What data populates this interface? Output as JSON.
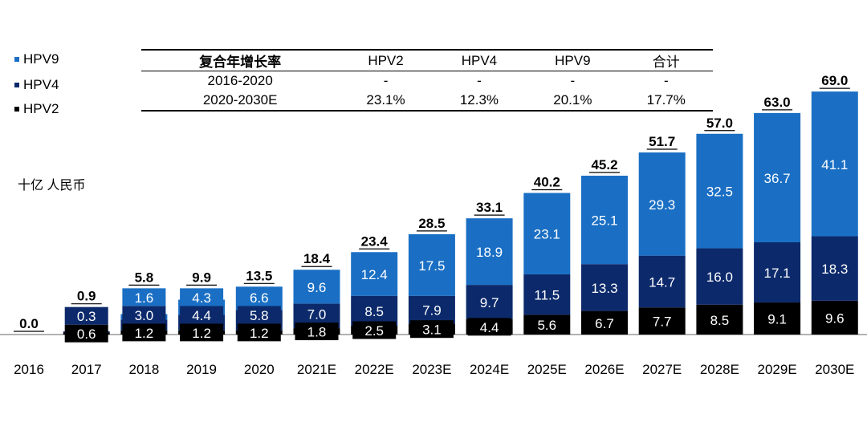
{
  "chart_data": {
    "type": "bar",
    "stacked": true,
    "ylabel": "十亿 人民币",
    "categories": [
      "2016",
      "2017",
      "2018",
      "2019",
      "2020",
      "2021E",
      "2022E",
      "2023E",
      "2024E",
      "2025E",
      "2026E",
      "2027E",
      "2028E",
      "2029E",
      "2030E"
    ],
    "series": [
      {
        "name": "HPV2",
        "color": "#000000",
        "values": [
          0,
          0.6,
          1.2,
          1.2,
          1.2,
          1.8,
          2.5,
          3.1,
          4.4,
          5.6,
          6.7,
          7.7,
          8.5,
          9.1,
          9.6
        ]
      },
      {
        "name": "HPV4",
        "color": "#0c2a6b",
        "values": [
          0,
          0.3,
          3.0,
          4.4,
          5.8,
          7.0,
          8.5,
          7.9,
          9.7,
          11.5,
          13.3,
          14.7,
          16.0,
          17.1,
          18.3
        ]
      },
      {
        "name": "HPV9",
        "color": "#1a6fc4",
        "values": [
          0,
          0,
          1.6,
          4.3,
          6.6,
          9.6,
          12.4,
          17.5,
          18.9,
          23.1,
          25.1,
          29.3,
          32.5,
          36.7,
          41.1
        ]
      }
    ],
    "totals": [
      "0.0",
      "0.9",
      "5.8",
      "9.9",
      "13.5",
      "18.4",
      "23.4",
      "28.5",
      "33.1",
      "40.2",
      "45.2",
      "51.7",
      "57.0",
      "63.0",
      "69.0"
    ],
    "legend": {
      "placement": "top-left",
      "entries": [
        "HPV9",
        "HPV4",
        "HPV2"
      ]
    },
    "grid": false
  },
  "cagr_table": {
    "header": [
      "复合年增长率",
      "HPV2",
      "HPV4",
      "HPV9",
      "合计"
    ],
    "rows": [
      [
        "2016-2020",
        "-",
        "-",
        "-",
        "-"
      ],
      [
        "2020-2030E",
        "23.1%",
        "12.3%",
        "20.1%",
        "17.7%"
      ]
    ]
  }
}
